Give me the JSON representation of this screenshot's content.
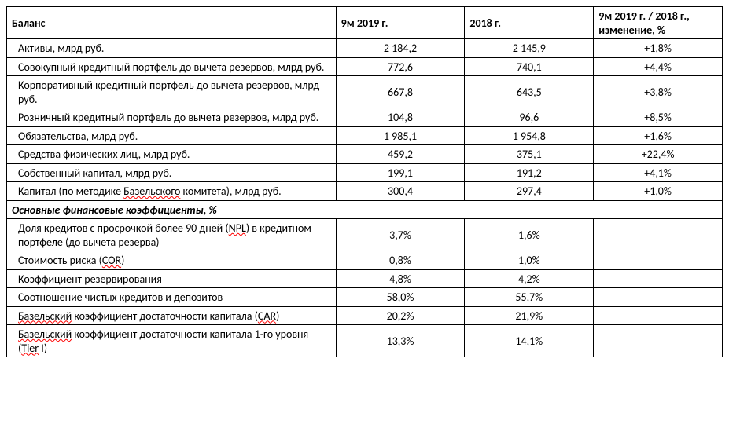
{
  "table": {
    "type": "table",
    "border_color": "#000000",
    "background_color": "#ffffff",
    "font_family": "Calibri",
    "font_size_pt": 11,
    "spellcheck_underline_color": "#ff0000",
    "column_widths_pct": [
      46,
      18,
      18,
      18
    ],
    "alignments": [
      "left",
      "center",
      "center",
      "center"
    ],
    "header": {
      "c0": "Баланс",
      "c1": "9м 2019 г.",
      "c2": "2018 г.",
      "c3": "9м 2019 г. / 2018 г., изменение, %"
    },
    "rows": [
      {
        "kind": "data",
        "label_parts": [
          {
            "t": "Активы, млрд руб."
          }
        ],
        "v1": "2 184,2",
        "v2": "2 145,9",
        "v3": "+1,8%"
      },
      {
        "kind": "data",
        "label_parts": [
          {
            "t": "Совокупный кредитный портфель до вычета резервов, млрд руб."
          }
        ],
        "v1": "772,6",
        "v2": "740,1",
        "v3": "+4,4%"
      },
      {
        "kind": "data",
        "label_parts": [
          {
            "t": "Корпоративный кредитный портфель до вычета резервов, млрд руб."
          }
        ],
        "v1": "667,8",
        "v2": "643,5",
        "v3": "+3,8%"
      },
      {
        "kind": "data",
        "label_parts": [
          {
            "t": "Розничный кредитный портфель до вычета резервов, млрд руб."
          }
        ],
        "v1": "104,8",
        "v2": "96,6",
        "v3": "+8,5%"
      },
      {
        "kind": "data",
        "label_parts": [
          {
            "t": "Обязательства, млрд руб."
          }
        ],
        "v1": "1 985,1",
        "v2": "1 954,8",
        "v3": "+1,6%"
      },
      {
        "kind": "data",
        "label_parts": [
          {
            "t": "Средства физических лиц, млрд руб."
          }
        ],
        "v1": "459,2",
        "v2": "375,1",
        "v3": "+22,4%"
      },
      {
        "kind": "data",
        "label_parts": [
          {
            "t": "Собственный капитал, млрд руб."
          }
        ],
        "v1": "199,1",
        "v2": "191,2",
        "v3": "+4,1%"
      },
      {
        "kind": "data",
        "label_parts": [
          {
            "t": "Капитал (по методике "
          },
          {
            "t": "Базельского",
            "sq": true
          },
          {
            "t": " комитета), млрд руб."
          }
        ],
        "v1": "300,4",
        "v2": "297,4",
        "v3": "+1,0%"
      },
      {
        "kind": "section",
        "label_parts": [
          {
            "t": "Основные финансовые коэффициенты, %"
          }
        ]
      },
      {
        "kind": "data",
        "label_parts": [
          {
            "t": "Доля кредитов с просрочкой более 90 дней ("
          },
          {
            "t": "NPL",
            "sq": true
          },
          {
            "t": ") в кредитном портфеле (до вычета резерва)"
          }
        ],
        "v1": "3,7%",
        "v2": "1,6%",
        "v3": ""
      },
      {
        "kind": "data",
        "label_parts": [
          {
            "t": "Стоимость риска ("
          },
          {
            "t": "COR",
            "sq": true
          },
          {
            "t": ")"
          }
        ],
        "v1": "0,8%",
        "v2": "1,0%",
        "v3": ""
      },
      {
        "kind": "data",
        "label_parts": [
          {
            "t": "Коэффициент резервирования"
          }
        ],
        "v1": "4,8%",
        "v2": "4,2%",
        "v3": ""
      },
      {
        "kind": "data",
        "label_parts": [
          {
            "t": "Соотношение чистых кредитов и депозитов"
          }
        ],
        "v1": "58,0%",
        "v2": "55,7%",
        "v3": ""
      },
      {
        "kind": "data",
        "label_parts": [
          {
            "t": "Базельский",
            "sq": true
          },
          {
            "t": " коэффициент достаточности капитала ("
          },
          {
            "t": "CAR",
            "sq": true
          },
          {
            "t": ")"
          }
        ],
        "v1": "20,2%",
        "v2": "21,9%",
        "v3": ""
      },
      {
        "kind": "data",
        "label_parts": [
          {
            "t": "Базельский",
            "sq": true
          },
          {
            "t": " коэффициент достаточности капитала 1-го уровня ("
          },
          {
            "t": "Tier",
            "sq": true
          },
          {
            "t": " I)"
          }
        ],
        "v1": "13,3%",
        "v2": "14,1%",
        "v3": ""
      }
    ]
  }
}
